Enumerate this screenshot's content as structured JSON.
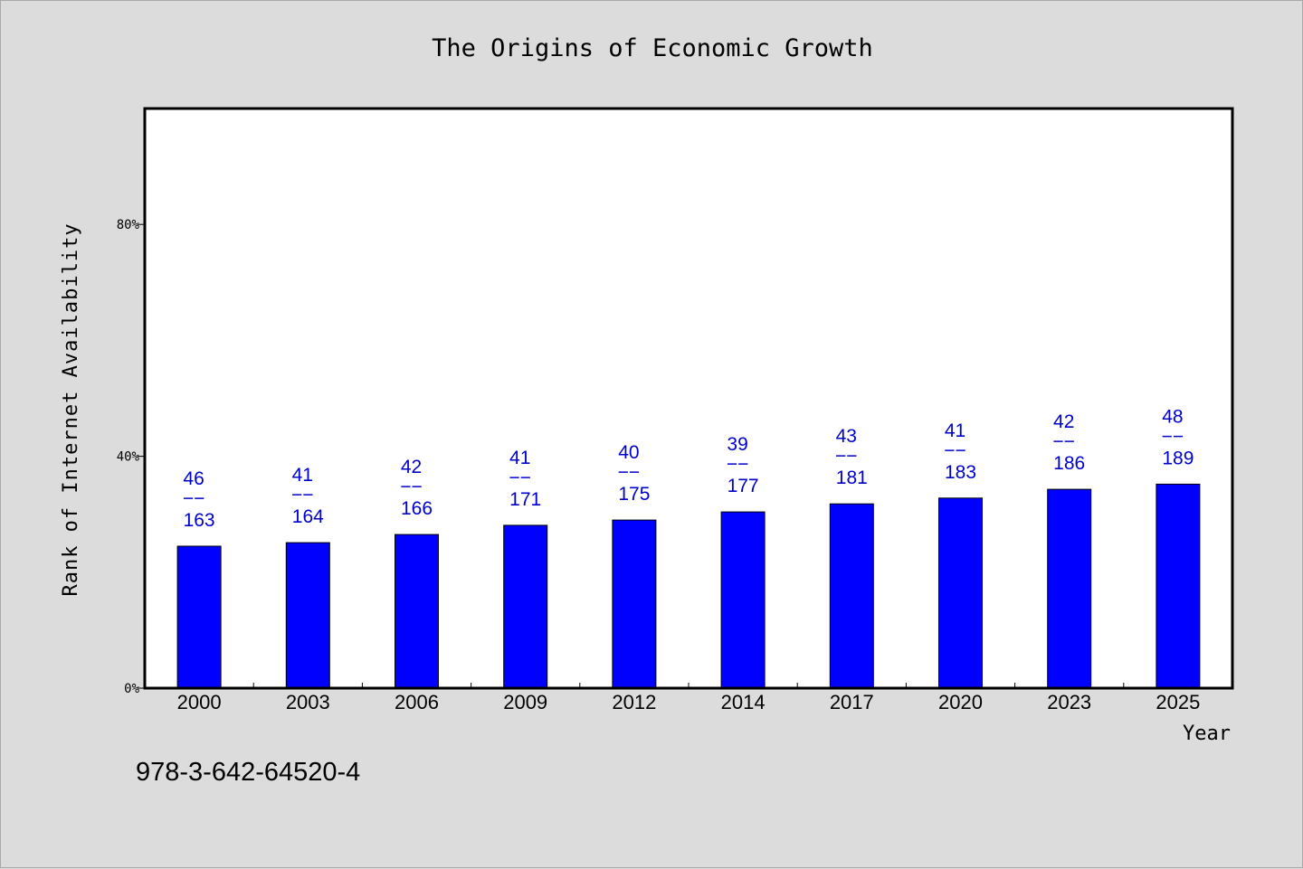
{
  "chart_data": {
    "type": "bar",
    "title": "The Origins of Economic Growth",
    "xlabel": "Year",
    "ylabel": "Rank of Internet Availability",
    "categories": [
      "2000",
      "2003",
      "2006",
      "2009",
      "2012",
      "2014",
      "2017",
      "2020",
      "2023",
      "2025"
    ],
    "values": [
      24.5,
      25.1,
      26.5,
      28.1,
      29.0,
      30.4,
      31.8,
      32.8,
      34.3,
      35.2
    ],
    "labels_top": [
      "46",
      "41",
      "42",
      "41",
      "40",
      "39",
      "43",
      "41",
      "42",
      "48"
    ],
    "labels_bottom": [
      "163",
      "164",
      "166",
      "171",
      "175",
      "177",
      "181",
      "183",
      "186",
      "189"
    ],
    "label_separator": "−−",
    "yticks": [
      "0%",
      "40%",
      "80%"
    ],
    "ytick_values": [
      0,
      40,
      80
    ],
    "ylim": [
      0,
      100
    ],
    "bar_color": "#0000ff",
    "label_color": "#0000cc",
    "grid": false,
    "legend": "none"
  },
  "footer": {
    "isbn": "978-3-642-64520-4"
  }
}
